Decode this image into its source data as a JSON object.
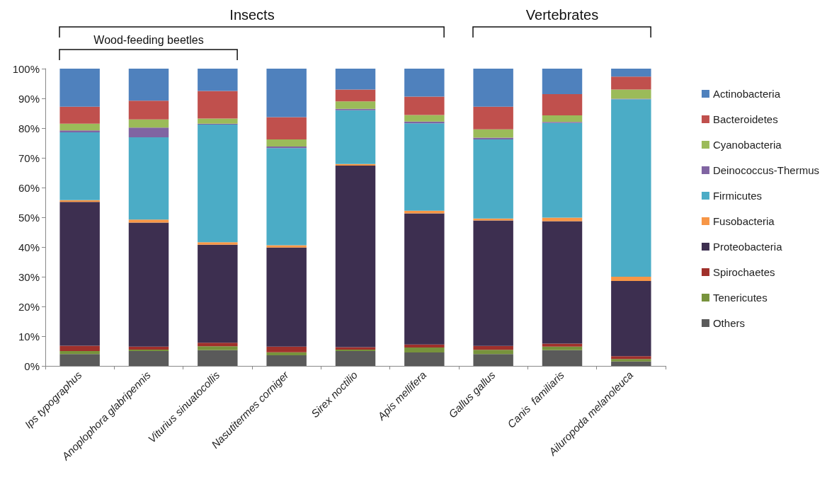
{
  "chart_data": {
    "type": "bar",
    "stacked": true,
    "categories": [
      "Ips typographus",
      "Anoplophora glabripennis",
      "Viturius sinuatocollis",
      "Nasutitermes corniger",
      "Sirex noctilio",
      "Apis mellifera",
      "Gallus gallus",
      "Canis  familiaris",
      "Ailuropoda melanoleuca"
    ],
    "series": [
      {
        "name": "Others",
        "color": "#5a5a5a",
        "values": [
          4.0,
          5.0,
          5.3,
          3.6,
          5.0,
          4.5,
          4.0,
          5.3,
          1.5
        ]
      },
      {
        "name": "Tenericutes",
        "color": "#77933c",
        "values": [
          1.0,
          0.5,
          1.3,
          1.0,
          0.5,
          1.7,
          1.4,
          1.2,
          0.8
        ]
      },
      {
        "name": "Spirochaetes",
        "color": "#a0302b",
        "values": [
          1.8,
          1.0,
          1.2,
          1.9,
          0.8,
          1.0,
          1.3,
          1.0,
          1.0
        ]
      },
      {
        "name": "Proteobacteria",
        "color": "#3d2f50",
        "values": [
          48.4,
          41.7,
          33.0,
          33.3,
          61.1,
          44.1,
          42.2,
          41.2,
          25.3
        ]
      },
      {
        "name": "Fusobacteria",
        "color": "#f79646",
        "values": [
          0.6,
          1.0,
          0.8,
          0.8,
          0.5,
          0.9,
          0.7,
          1.2,
          1.4
        ]
      },
      {
        "name": "Firmicutes",
        "color": "#4bacc6",
        "values": [
          22.8,
          27.7,
          39.6,
          32.7,
          18.1,
          29.4,
          26.6,
          31.8,
          59.7
        ]
      },
      {
        "name": "Deinococcus-Thermus",
        "color": "#8064a2",
        "values": [
          0.6,
          3.3,
          0.3,
          0.5,
          0.5,
          0.6,
          0.6,
          0.4,
          0.2
        ]
      },
      {
        "name": "Cyanobacteria",
        "color": "#9bbb59",
        "values": [
          2.3,
          2.7,
          1.7,
          2.4,
          2.5,
          2.2,
          2.8,
          2.2,
          3.1
        ]
      },
      {
        "name": "Bacteroidetes",
        "color": "#c0504d",
        "values": [
          5.7,
          6.3,
          9.3,
          7.5,
          4.0,
          6.2,
          7.6,
          7.1,
          4.3
        ]
      },
      {
        "name": "Actinobacteria",
        "color": "#4f81bd",
        "values": [
          12.8,
          10.8,
          7.5,
          16.3,
          7.0,
          9.4,
          12.8,
          8.6,
          2.7
        ]
      }
    ],
    "ylim": [
      0,
      100
    ],
    "yticks": [
      {
        "value": 0,
        "label": "0%"
      },
      {
        "value": 10,
        "label": "10%"
      },
      {
        "value": 20,
        "label": "20%"
      },
      {
        "value": 30,
        "label": "30%"
      },
      {
        "value": 40,
        "label": "40%"
      },
      {
        "value": 50,
        "label": "50%"
      },
      {
        "value": 60,
        "label": "60%"
      },
      {
        "value": 70,
        "label": "70%"
      },
      {
        "value": 80,
        "label": "80%"
      },
      {
        "value": 90,
        "label": "90%"
      },
      {
        "value": 100,
        "label": "100%"
      }
    ],
    "grid": false,
    "legend": "right",
    "annotations": [
      "Insects",
      "Vertebrates",
      "Wood-feeding beetles"
    ]
  }
}
